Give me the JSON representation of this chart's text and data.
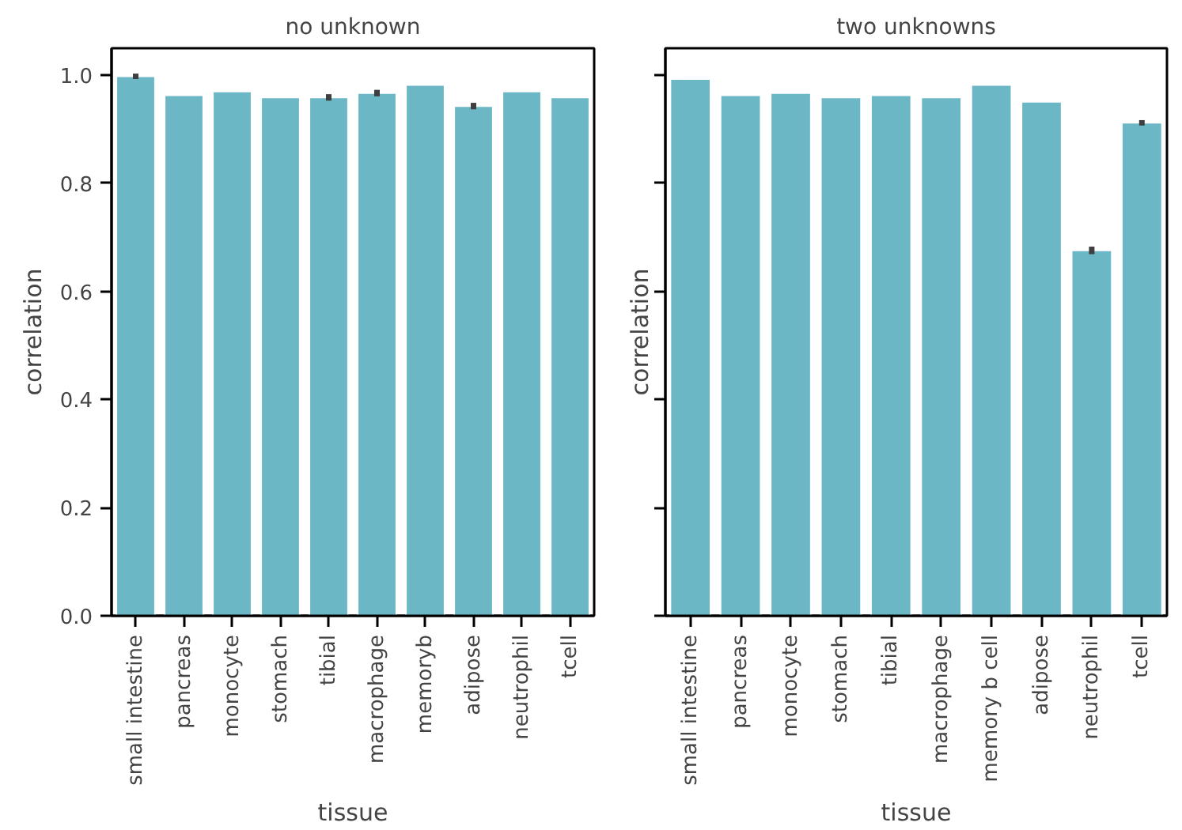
{
  "chart_data": [
    {
      "type": "bar",
      "title": "no unknown",
      "xlabel": "tissue",
      "ylabel": "correlation",
      "categories": [
        "small intestine",
        "pancreas",
        "monocyte",
        "stomach",
        "tibial",
        "macrophage",
        "memoryb",
        "adipose",
        "neutrophil",
        "tcell"
      ],
      "values": [
        0.998,
        0.963,
        0.97,
        0.959,
        0.959,
        0.967,
        0.982,
        0.943,
        0.97,
        0.959
      ],
      "errors": [
        0.005,
        null,
        null,
        null,
        0.006,
        0.006,
        null,
        0.006,
        null,
        null
      ],
      "color": "#6cb7c6",
      "ylim": [
        0,
        1.05
      ],
      "yticks": [
        {
          "value": 0,
          "label": "0.0"
        },
        {
          "value": 0.2,
          "label": "0.2"
        },
        {
          "value": 0.4,
          "label": "0.4"
        },
        {
          "value": 0.6,
          "label": "0.6"
        },
        {
          "value": 0.8,
          "label": "0.8"
        },
        {
          "value": 1,
          "label": "1.0"
        }
      ],
      "grid": false
    },
    {
      "type": "bar",
      "title": "two unknowns",
      "xlabel": "tissue",
      "ylabel": "correlation",
      "categories": [
        "small intestine",
        "pancreas",
        "monocyte",
        "stomach",
        "tibial",
        "macrophage",
        "memory b cell",
        "adipose",
        "neutrophil",
        "tcell"
      ],
      "values": [
        0.993,
        0.963,
        0.967,
        0.959,
        0.963,
        0.959,
        0.982,
        0.951,
        0.676,
        0.912
      ],
      "errors": [
        null,
        null,
        null,
        null,
        null,
        null,
        null,
        null,
        0.007,
        0.005
      ],
      "color": "#6cb7c6",
      "ylim": [
        0,
        1.05
      ],
      "yticks": [
        {
          "value": 0,
          "label": null
        },
        {
          "value": 0.2,
          "label": null
        },
        {
          "value": 0.4,
          "label": null
        },
        {
          "value": 0.6,
          "label": null
        },
        {
          "value": 0.8,
          "label": null
        },
        {
          "value": 1,
          "label": null
        }
      ],
      "grid": false,
      "tick_labels": "x"
    }
  ]
}
